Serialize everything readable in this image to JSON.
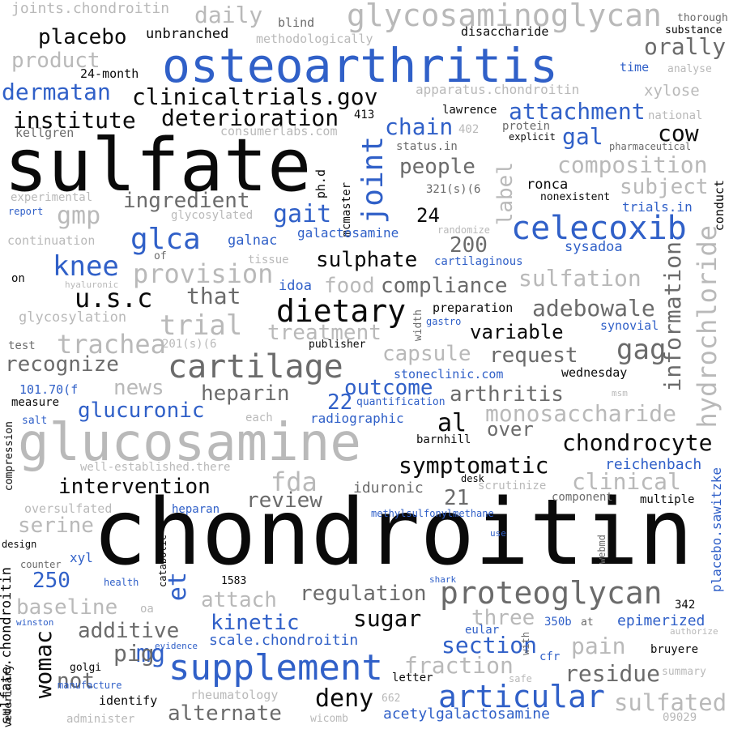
{
  "words": [
    {
      "text": "chondroitin",
      "color": "black"
    },
    {
      "text": "sulfate",
      "color": "black"
    },
    {
      "text": "glucosamine",
      "color": "light"
    },
    {
      "text": "osteoarthritis",
      "color": "blue"
    },
    {
      "text": "supplement",
      "color": "blue"
    },
    {
      "text": "glycosaminoglycan",
      "color": "light"
    },
    {
      "text": "cartilage",
      "color": "gray"
    },
    {
      "text": "proteoglycan",
      "color": "gray"
    },
    {
      "text": "celecoxib",
      "color": "blue"
    },
    {
      "text": "dietary",
      "color": "black"
    },
    {
      "text": "articular",
      "color": "blue"
    },
    {
      "text": "glca",
      "color": "blue"
    },
    {
      "text": "knee",
      "color": "blue"
    },
    {
      "text": "u.s.c",
      "color": "black"
    },
    {
      "text": "joint",
      "color": "blue"
    },
    {
      "text": "trial",
      "color": "light"
    },
    {
      "text": "provision",
      "color": "light"
    },
    {
      "text": "trachea",
      "color": "light"
    },
    {
      "text": "fda",
      "color": "light"
    },
    {
      "text": "hydrochloride",
      "color": "light"
    },
    {
      "text": "information",
      "color": "gray"
    },
    {
      "text": "composition",
      "color": "light"
    },
    {
      "text": "monosaccharide",
      "color": "light"
    },
    {
      "text": "chondrocyte",
      "color": "black"
    },
    {
      "text": "symptomatic",
      "color": "black"
    },
    {
      "text": "intervention",
      "color": "black"
    },
    {
      "text": "sulfation",
      "color": "light"
    },
    {
      "text": "adebowale",
      "color": "gray"
    },
    {
      "text": "gag",
      "color": "gray"
    },
    {
      "text": "womac",
      "color": "black"
    },
    {
      "text": "deny",
      "color": "black"
    },
    {
      "text": "sulfated",
      "color": "light"
    },
    {
      "text": "section",
      "color": "blue"
    },
    {
      "text": "residue",
      "color": "gray"
    },
    {
      "text": "pain",
      "color": "light"
    },
    {
      "text": "fraction",
      "color": "light"
    },
    {
      "text": "mg",
      "color": "blue"
    },
    {
      "text": "et",
      "color": "blue"
    },
    {
      "text": "al",
      "color": "black"
    },
    {
      "text": "deterioration",
      "color": "black"
    },
    {
      "text": "clinicaltrials.gov",
      "color": "black"
    },
    {
      "text": "institute",
      "color": "black"
    },
    {
      "text": "dermatan",
      "color": "blue"
    },
    {
      "text": "attachment",
      "color": "blue"
    },
    {
      "text": "placebo",
      "color": "black"
    },
    {
      "text": "orally",
      "color": "gray"
    },
    {
      "text": "daily",
      "color": "light"
    },
    {
      "text": "product",
      "color": "light"
    },
    {
      "text": "cow",
      "color": "black"
    },
    {
      "text": "chain",
      "color": "blue"
    },
    {
      "text": "gal",
      "color": "blue"
    },
    {
      "text": "people",
      "color": "gray"
    },
    {
      "text": "subject",
      "color": "light"
    },
    {
      "text": "label",
      "color": "light"
    },
    {
      "text": "gait",
      "color": "blue"
    },
    {
      "text": "gmp",
      "color": "light"
    },
    {
      "text": "ingredient",
      "color": "gray"
    },
    {
      "text": "heparin",
      "color": "gray"
    },
    {
      "text": "arthritis",
      "color": "gray"
    },
    {
      "text": "outcome",
      "color": "blue"
    },
    {
      "text": "glucuronic",
      "color": "blue"
    },
    {
      "text": "compliance",
      "color": "gray"
    },
    {
      "text": "sulphate",
      "color": "black"
    },
    {
      "text": "variable",
      "color": "black"
    },
    {
      "text": "request",
      "color": "gray"
    },
    {
      "text": "capsule",
      "color": "light"
    },
    {
      "text": "treatment",
      "color": "light"
    },
    {
      "text": "recognize",
      "color": "gray"
    },
    {
      "text": "news",
      "color": "light"
    },
    {
      "text": "that",
      "color": "gray"
    },
    {
      "text": "food",
      "color": "light"
    },
    {
      "text": "review",
      "color": "gray"
    },
    {
      "text": "clinical",
      "color": "light"
    },
    {
      "text": "baseline",
      "color": "light"
    },
    {
      "text": "additive",
      "color": "gray"
    },
    {
      "text": "attach",
      "color": "light"
    },
    {
      "text": "regulation",
      "color": "gray"
    },
    {
      "text": "sugar",
      "color": "black"
    },
    {
      "text": "kinetic",
      "color": "blue"
    },
    {
      "text": "three",
      "color": "light"
    },
    {
      "text": "pig",
      "color": "gray"
    },
    {
      "text": "alternate",
      "color": "gray"
    },
    {
      "text": "not",
      "color": "gray"
    },
    {
      "text": "serine",
      "color": "light"
    },
    {
      "text": "250",
      "color": "blue"
    },
    {
      "text": "21",
      "color": "gray"
    },
    {
      "text": "22",
      "color": "blue"
    },
    {
      "text": "24",
      "color": "black"
    },
    {
      "text": "200",
      "color": "gray"
    },
    {
      "text": "acetylgalactosamine",
      "color": "blue"
    },
    {
      "text": "scale.chondroitin",
      "color": "blue"
    },
    {
      "text": "iduronic",
      "color": "gray"
    },
    {
      "text": "epimerized",
      "color": "blue"
    },
    {
      "text": "reichenbach",
      "color": "blue"
    },
    {
      "text": "placebo.sawitzke",
      "color": "blue"
    },
    {
      "text": "sulfate.chondroitin",
      "color": "black"
    },
    {
      "text": "joints.chondroitin",
      "color": "light"
    },
    {
      "text": "unbranched",
      "color": "black"
    },
    {
      "text": "blind",
      "color": "gray"
    },
    {
      "text": "disaccharide",
      "color": "black"
    },
    {
      "text": "thorough",
      "color": "gray"
    },
    {
      "text": "substance",
      "color": "black"
    },
    {
      "text": "methodologically",
      "color": "light"
    },
    {
      "text": "24-month",
      "color": "black"
    },
    {
      "text": "apparatus.chondroitin",
      "color": "light"
    },
    {
      "text": "time",
      "color": "blue"
    },
    {
      "text": "analyse",
      "color": "light"
    },
    {
      "text": "xylose",
      "color": "light"
    },
    {
      "text": "lawrence",
      "color": "black"
    },
    {
      "text": "national",
      "color": "light"
    },
    {
      "text": "413",
      "color": "black"
    },
    {
      "text": "402",
      "color": "light"
    },
    {
      "text": "protein",
      "color": "gray"
    },
    {
      "text": "explicit",
      "color": "black"
    },
    {
      "text": "pharmaceutical",
      "color": "gray"
    },
    {
      "text": "consumerlabs.com",
      "color": "light"
    },
    {
      "text": "kellgren",
      "color": "gray"
    },
    {
      "text": "status.in",
      "color": "gray"
    },
    {
      "text": "ph.d",
      "color": "black"
    },
    {
      "text": "mcmaster",
      "color": "black"
    },
    {
      "text": "ronca",
      "color": "black"
    },
    {
      "text": "nonexistent",
      "color": "black"
    },
    {
      "text": "321(s)(6",
      "color": "gray"
    },
    {
      "text": "trials.in",
      "color": "blue"
    },
    {
      "text": "conduct",
      "color": "black"
    },
    {
      "text": "experimental",
      "color": "light"
    },
    {
      "text": "report",
      "color": "blue"
    },
    {
      "text": "glycosylated",
      "color": "light"
    },
    {
      "text": "randomize",
      "color": "light"
    },
    {
      "text": "galactosamine",
      "color": "blue"
    },
    {
      "text": "continuation",
      "color": "light"
    },
    {
      "text": "galnac",
      "color": "blue"
    },
    {
      "text": "of",
      "color": "gray"
    },
    {
      "text": "tissue",
      "color": "light"
    },
    {
      "text": "cartilaginous",
      "color": "blue"
    },
    {
      "text": "sysadoa",
      "color": "blue"
    },
    {
      "text": "on",
      "color": "black"
    },
    {
      "text": "hyaluronic",
      "color": "light"
    },
    {
      "text": "idoa",
      "color": "blue"
    },
    {
      "text": "glycosylation",
      "color": "light"
    },
    {
      "text": "preparation",
      "color": "black"
    },
    {
      "text": "width",
      "color": "gray"
    },
    {
      "text": "gastro",
      "color": "blue"
    },
    {
      "text": "synovial",
      "color": "blue"
    },
    {
      "text": "test",
      "color": "gray"
    },
    {
      "text": "201(s)(6",
      "color": "light"
    },
    {
      "text": "publisher",
      "color": "black"
    },
    {
      "text": "stoneclinic.com",
      "color": "blue"
    },
    {
      "text": "wednesday",
      "color": "black"
    },
    {
      "text": "101.70(f",
      "color": "blue"
    },
    {
      "text": "measure",
      "color": "black"
    },
    {
      "text": "quantification",
      "color": "blue"
    },
    {
      "text": "msm",
      "color": "light"
    },
    {
      "text": "salt",
      "color": "blue"
    },
    {
      "text": "each",
      "color": "light"
    },
    {
      "text": "radiographic",
      "color": "blue"
    },
    {
      "text": "over",
      "color": "gray"
    },
    {
      "text": "compression",
      "color": "black"
    },
    {
      "text": "barnhill",
      "color": "black"
    },
    {
      "text": "well-established.there",
      "color": "light"
    },
    {
      "text": "desk",
      "color": "black"
    },
    {
      "text": "scrutinize",
      "color": "light"
    },
    {
      "text": "oversulfated",
      "color": "light"
    },
    {
      "text": "heparan",
      "color": "blue"
    },
    {
      "text": "component",
      "color": "gray"
    },
    {
      "text": "multiple",
      "color": "black"
    },
    {
      "text": "methylsulfonylmethane",
      "color": "blue"
    },
    {
      "text": "design",
      "color": "black"
    },
    {
      "text": "catabolic",
      "color": "black"
    },
    {
      "text": "use",
      "color": "blue"
    },
    {
      "text": "webmd",
      "color": "gray"
    },
    {
      "text": "counter",
      "color": "gray"
    },
    {
      "text": "xyl",
      "color": "blue"
    },
    {
      "text": "health",
      "color": "blue"
    },
    {
      "text": "1583",
      "color": "black"
    },
    {
      "text": "shark",
      "color": "blue"
    },
    {
      "text": "342",
      "color": "black"
    },
    {
      "text": "oa",
      "color": "light"
    },
    {
      "text": "winston",
      "color": "blue"
    },
    {
      "text": "350b",
      "color": "blue"
    },
    {
      "text": "at",
      "color": "gray"
    },
    {
      "text": "eular",
      "color": "blue"
    },
    {
      "text": "authorize",
      "color": "light"
    },
    {
      "text": "evidence",
      "color": "blue"
    },
    {
      "text": "with",
      "color": "gray"
    },
    {
      "text": "bruyere",
      "color": "black"
    },
    {
      "text": "golgi",
      "color": "black"
    },
    {
      "text": "letter",
      "color": "black"
    },
    {
      "text": "cfr",
      "color": "blue"
    },
    {
      "text": "safe",
      "color": "light"
    },
    {
      "text": "summary",
      "color": "light"
    },
    {
      "text": "veterinary",
      "color": "black"
    },
    {
      "text": "manufacture",
      "color": "blue"
    },
    {
      "text": "identify",
      "color": "black"
    },
    {
      "text": "rheumatology",
      "color": "light"
    },
    {
      "text": "662",
      "color": "light"
    },
    {
      "text": "administer",
      "color": "light"
    },
    {
      "text": "wicomb",
      "color": "light"
    },
    {
      "text": "09029",
      "color": "light"
    }
  ]
}
